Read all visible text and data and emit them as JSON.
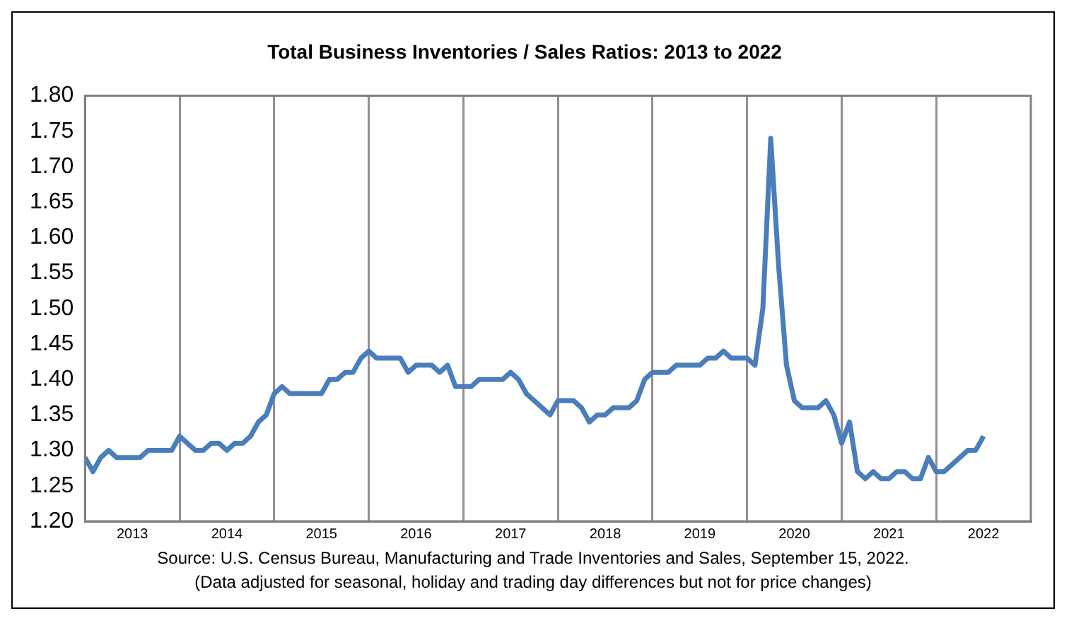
{
  "chart_data": {
    "type": "line",
    "title": "Total Business Inventories / Sales Ratios: 2013 to 2022",
    "x": [
      "2013-01",
      "2013-02",
      "2013-03",
      "2013-04",
      "2013-05",
      "2013-06",
      "2013-07",
      "2013-08",
      "2013-09",
      "2013-10",
      "2013-11",
      "2013-12",
      "2014-01",
      "2014-02",
      "2014-03",
      "2014-04",
      "2014-05",
      "2014-06",
      "2014-07",
      "2014-08",
      "2014-09",
      "2014-10",
      "2014-11",
      "2014-12",
      "2015-01",
      "2015-02",
      "2015-03",
      "2015-04",
      "2015-05",
      "2015-06",
      "2015-07",
      "2015-08",
      "2015-09",
      "2015-10",
      "2015-11",
      "2015-12",
      "2016-01",
      "2016-02",
      "2016-03",
      "2016-04",
      "2016-05",
      "2016-06",
      "2016-07",
      "2016-08",
      "2016-09",
      "2016-10",
      "2016-11",
      "2016-12",
      "2017-01",
      "2017-02",
      "2017-03",
      "2017-04",
      "2017-05",
      "2017-06",
      "2017-07",
      "2017-08",
      "2017-09",
      "2017-10",
      "2017-11",
      "2017-12",
      "2018-01",
      "2018-02",
      "2018-03",
      "2018-04",
      "2018-05",
      "2018-06",
      "2018-07",
      "2018-08",
      "2018-09",
      "2018-10",
      "2018-11",
      "2018-12",
      "2019-01",
      "2019-02",
      "2019-03",
      "2019-04",
      "2019-05",
      "2019-06",
      "2019-07",
      "2019-08",
      "2019-09",
      "2019-10",
      "2019-11",
      "2019-12",
      "2020-01",
      "2020-02",
      "2020-03",
      "2020-04",
      "2020-05",
      "2020-06",
      "2020-07",
      "2020-08",
      "2020-09",
      "2020-10",
      "2020-11",
      "2020-12",
      "2021-01",
      "2021-02",
      "2021-03",
      "2021-04",
      "2021-05",
      "2021-06",
      "2021-07",
      "2021-08",
      "2021-09",
      "2021-10",
      "2021-11",
      "2021-12",
      "2022-01",
      "2022-02",
      "2022-03",
      "2022-04",
      "2022-05",
      "2022-06",
      "2022-07"
    ],
    "series": [
      {
        "color": "#4a7ebb",
        "values": [
          1.29,
          1.27,
          1.29,
          1.3,
          1.29,
          1.29,
          1.29,
          1.29,
          1.3,
          1.3,
          1.3,
          1.3,
          1.32,
          1.31,
          1.3,
          1.3,
          1.31,
          1.31,
          1.3,
          1.31,
          1.31,
          1.32,
          1.34,
          1.35,
          1.38,
          1.39,
          1.38,
          1.38,
          1.38,
          1.38,
          1.38,
          1.4,
          1.4,
          1.41,
          1.41,
          1.43,
          1.44,
          1.43,
          1.43,
          1.43,
          1.43,
          1.41,
          1.42,
          1.42,
          1.42,
          1.41,
          1.42,
          1.39,
          1.39,
          1.39,
          1.4,
          1.4,
          1.4,
          1.4,
          1.41,
          1.4,
          1.38,
          1.37,
          1.36,
          1.35,
          1.37,
          1.37,
          1.37,
          1.36,
          1.34,
          1.35,
          1.35,
          1.36,
          1.36,
          1.36,
          1.37,
          1.4,
          1.41,
          1.41,
          1.41,
          1.42,
          1.42,
          1.42,
          1.42,
          1.43,
          1.43,
          1.44,
          1.43,
          1.43,
          1.43,
          1.42,
          1.5,
          1.74,
          1.56,
          1.42,
          1.37,
          1.36,
          1.36,
          1.36,
          1.37,
          1.35,
          1.31,
          1.34,
          1.27,
          1.26,
          1.27,
          1.26,
          1.26,
          1.27,
          1.27,
          1.26,
          1.26,
          1.29,
          1.27,
          1.27,
          1.28,
          1.29,
          1.3,
          1.3,
          1.32
        ]
      }
    ],
    "xlim": [
      "2013-01",
      "2023-01"
    ],
    "xticks": [
      {
        "value": "2013-07",
        "label": "2013"
      },
      {
        "value": "2014-07",
        "label": "2014"
      },
      {
        "value": "2015-07",
        "label": "2015"
      },
      {
        "value": "2016-07",
        "label": "2016"
      },
      {
        "value": "2017-07",
        "label": "2017"
      },
      {
        "value": "2018-07",
        "label": "2018"
      },
      {
        "value": "2019-07",
        "label": "2019"
      },
      {
        "value": "2020-07",
        "label": "2020"
      },
      {
        "value": "2021-07",
        "label": "2021"
      },
      {
        "value": "2022-07",
        "label": "2022"
      },
      {
        "value": "2014-01",
        "label": null
      },
      {
        "value": "2015-01",
        "label": null
      },
      {
        "value": "2016-01",
        "label": null
      },
      {
        "value": "2017-01",
        "label": null
      },
      {
        "value": "2018-01",
        "label": null
      },
      {
        "value": "2019-01",
        "label": null
      },
      {
        "value": "2020-01",
        "label": null
      },
      {
        "value": "2021-01",
        "label": null
      },
      {
        "value": "2022-01",
        "label": null
      }
    ],
    "ylim": [
      1.2,
      1.8
    ],
    "yticks": [
      {
        "value": 1.2,
        "label": "1.20"
      },
      {
        "value": 1.25,
        "label": "1.25"
      },
      {
        "value": 1.3,
        "label": "1.30"
      },
      {
        "value": 1.35,
        "label": "1.35"
      },
      {
        "value": 1.4,
        "label": "1.40"
      },
      {
        "value": 1.45,
        "label": "1.45"
      },
      {
        "value": 1.5,
        "label": "1.50"
      },
      {
        "value": 1.55,
        "label": "1.55"
      },
      {
        "value": 1.6,
        "label": "1.60"
      },
      {
        "value": 1.65,
        "label": "1.65"
      },
      {
        "value": 1.7,
        "label": "1.70"
      },
      {
        "value": 1.75,
        "label": "1.75"
      },
      {
        "value": 1.8,
        "label": "1.80"
      }
    ],
    "grid": "x",
    "marker": "none",
    "line_style": "solid",
    "annotations": [
      "Source: U.S. Census Bureau, Manufacturing and Trade Inventories and Sales, September 15, 2022.",
      "(Data adjusted for seasonal, holiday and trading day differences but not for price changes)"
    ]
  }
}
